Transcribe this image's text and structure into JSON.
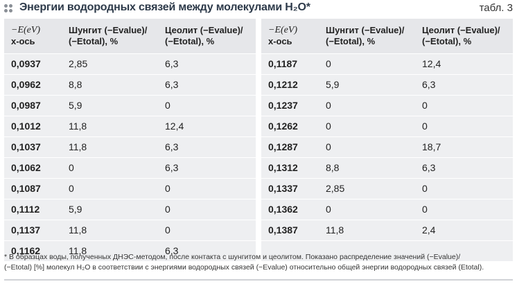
{
  "header": {
    "title": "Энергии водородных связей между молекулами H₂O*",
    "table_no": "табл. 3"
  },
  "table": {
    "columns": {
      "energy": [
        "−E(eV)",
        "x-ось"
      ],
      "shungite": [
        "Шунгит (−Evalue)/",
        "(−Etotal), %"
      ],
      "zeolite": [
        "Цеолит (−Evalue)/",
        "(−Etotal), %"
      ]
    },
    "left_rows": [
      {
        "e": "0,0937",
        "shungite": "2,85",
        "zeolite": "6,3"
      },
      {
        "e": "0,0962",
        "shungite": "8,8",
        "zeolite": "6,3"
      },
      {
        "e": "0,0987",
        "shungite": "5,9",
        "zeolite": "0"
      },
      {
        "e": "0,1012",
        "shungite": "11,8",
        "zeolite": "12,4"
      },
      {
        "e": "0,1037",
        "shungite": "11,8",
        "zeolite": "6,3"
      },
      {
        "e": "0,1062",
        "shungite": "0",
        "zeolite": "6,3"
      },
      {
        "e": "0,1087",
        "shungite": "0",
        "zeolite": "0"
      },
      {
        "e": "0,1112",
        "shungite": "5,9",
        "zeolite": "0"
      },
      {
        "e": "0,1137",
        "shungite": "11,8",
        "zeolite": "0"
      },
      {
        "e": "0,1162",
        "shungite": "11,8",
        "zeolite": "6,3"
      }
    ],
    "right_rows": [
      {
        "e": "0,1187",
        "shungite": "0",
        "zeolite": "12,4"
      },
      {
        "e": "0,1212",
        "shungite": "5,9",
        "zeolite": "6,3"
      },
      {
        "e": "0,1237",
        "shungite": "0",
        "zeolite": "0"
      },
      {
        "e": "0,1262",
        "shungite": "0",
        "zeolite": "0"
      },
      {
        "e": "0,1287",
        "shungite": "0",
        "zeolite": "18,7"
      },
      {
        "e": "0,1312",
        "shungite": "8,8",
        "zeolite": "6,3"
      },
      {
        "e": "0,1337",
        "shungite": "2,85",
        "zeolite": "0"
      },
      {
        "e": "0,1362",
        "shungite": "0",
        "zeolite": "0"
      },
      {
        "e": "0,1387",
        "shungite": "11,8",
        "zeolite": "2,4"
      },
      {
        "e": "",
        "shungite": "",
        "zeolite": ""
      }
    ]
  },
  "footnote": {
    "line1": "* В образцах воды, полученных ДНЭС-методом, после контакта с шунгитом и цеолитом. Показано распределение значений (−Evalue)/",
    "line2": "(−Etotal) [%] молекул H₂O в соответствии с энергиями водородных связей (−Evalue) относительно общей энергии водородных связей (Etotal)."
  },
  "colors": {
    "table_bg": "#eeeff1",
    "title": "#2d3a4a",
    "dots": "#8a8f96"
  }
}
